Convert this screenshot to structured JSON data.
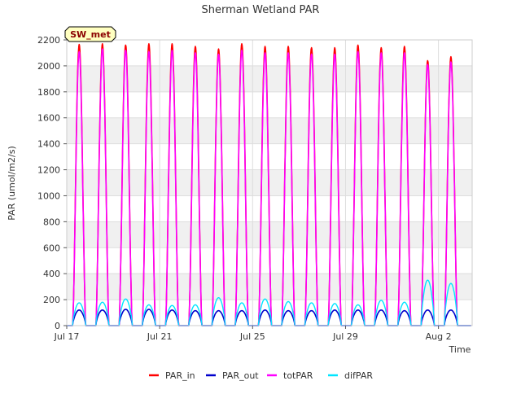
{
  "chart_data": {
    "type": "line",
    "title": "Sherman Wetland PAR",
    "site_label": "SW_met",
    "xlabel": "Time",
    "ylabel": "PAR (umol/m2/s)",
    "ylim": [
      0,
      2200
    ],
    "xlim_days": [
      0,
      17.45
    ],
    "y_ticks": [
      0,
      200,
      400,
      600,
      800,
      1000,
      1200,
      1400,
      1600,
      1800,
      2000,
      2200
    ],
    "x_ticks": [
      {
        "day": 0,
        "label": "Jul 17"
      },
      {
        "day": 4,
        "label": "Jul 21"
      },
      {
        "day": 8,
        "label": "Jul 25"
      },
      {
        "day": 12,
        "label": "Jul 29"
      },
      {
        "day": 16,
        "label": "Aug 2"
      }
    ],
    "grid": true,
    "legend_position": "bottom",
    "series": [
      {
        "name": "PAR_in",
        "color": "#ff0000",
        "daily_peaks": [
          2165,
          2170,
          2160,
          2170,
          2170,
          2150,
          2130,
          2170,
          2150,
          2150,
          2140,
          2140,
          2160,
          2140,
          2150,
          2040,
          2070
        ]
      },
      {
        "name": "PAR_out",
        "color": "#0000cc",
        "daily_peaks": [
          120,
          120,
          125,
          125,
          120,
          115,
          115,
          115,
          120,
          115,
          115,
          120,
          120,
          120,
          115,
          120,
          120
        ]
      },
      {
        "name": "totPAR",
        "color": "#ff00ff",
        "daily_peaks": [
          2110,
          2130,
          2120,
          2110,
          2120,
          2100,
          2090,
          2120,
          2100,
          2100,
          2090,
          2090,
          2110,
          2100,
          2100,
          2010,
          2030
        ]
      },
      {
        "name": "difPAR",
        "color": "#00e5ff",
        "daily_peaks": [
          175,
          180,
          205,
          160,
          155,
          160,
          215,
          175,
          205,
          185,
          175,
          170,
          160,
          195,
          180,
          350,
          325
        ]
      }
    ]
  }
}
